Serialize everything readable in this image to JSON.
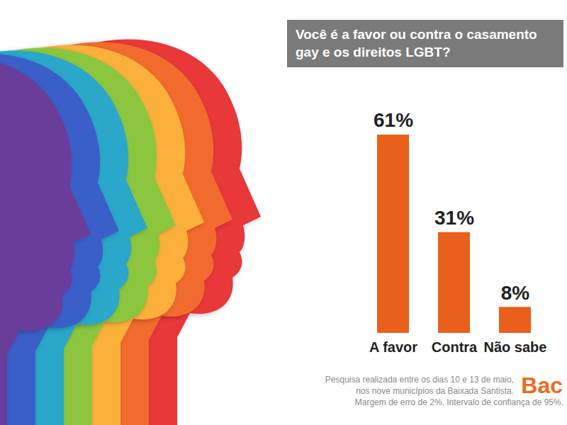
{
  "chart_data": {
    "type": "bar",
    "title": "Você é a favor ou contra o casamento gay e os direitos LGBT?",
    "categories": [
      "A favor",
      "Contra",
      "Não sabe"
    ],
    "values": [
      61,
      31,
      8
    ],
    "value_labels": [
      "61%",
      "31%",
      "8%"
    ],
    "data_labels": true,
    "color": "#e8601c",
    "ylim": [
      0,
      61
    ],
    "yticks": [],
    "tick_labels": "x",
    "grid": false,
    "notes": [
      "Pesquisa realizada entre os dias 10 e 13 de maio,",
      "nos nove municípios da Baixada Santista.",
      "Margem de erro de 2%. Intervalo de confiança de 95%."
    ],
    "logo": "Bac"
  }
}
